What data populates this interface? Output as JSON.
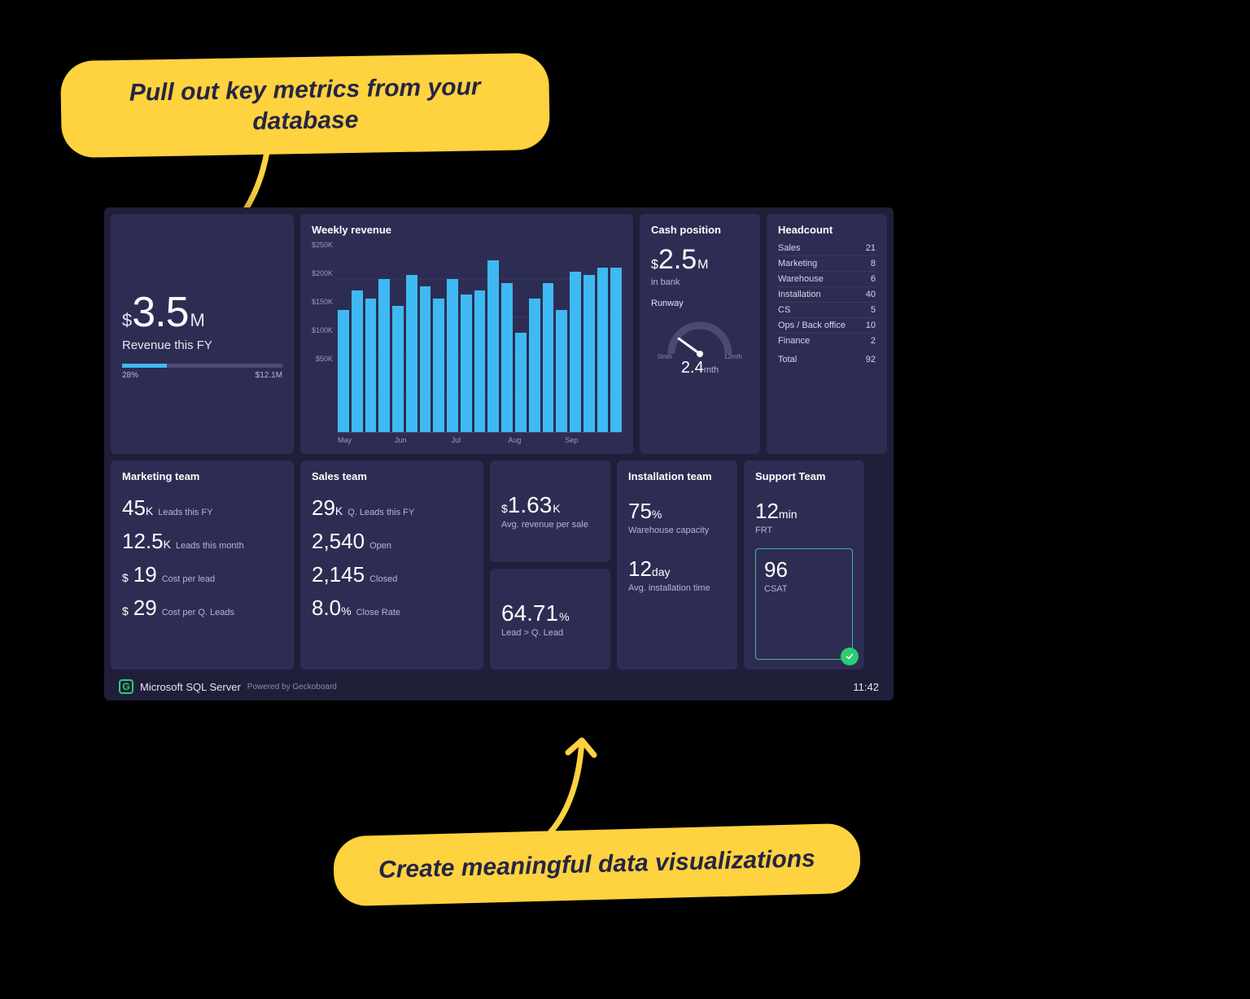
{
  "colors": {
    "page_bg": "#000000",
    "dashboard_bg": "#1f1f3a",
    "card_bg": "#2d2d54",
    "accent_blue": "#3fb9f2",
    "callout_bg": "#ffd23f",
    "callout_text": "#252543",
    "text_primary": "#ffffff",
    "text_muted": "#b5b5d0",
    "grid": "#3a3a5e",
    "success_green": "#2ecc71",
    "csat_border": "#3fb98f"
  },
  "callouts": {
    "top": "Pull out key metrics from your database",
    "bottom": "Create meaningful data visualizations"
  },
  "revenue_fy": {
    "prefix": "$",
    "value": "3.5",
    "suffix": "M",
    "label": "Revenue this FY",
    "progress_pct": 28,
    "progress_label": "28%",
    "target_label": "$12.1M"
  },
  "weekly_revenue": {
    "title": "Weekly revenue",
    "type": "bar",
    "y_ticks": [
      "$250K",
      "$200K",
      "$150K",
      "$100K",
      "$50K"
    ],
    "y_max": 250,
    "x_labels": [
      "May",
      "Jun",
      "Jul",
      "Aug",
      "Sep"
    ],
    "values": [
      160,
      185,
      175,
      200,
      165,
      205,
      190,
      175,
      200,
      180,
      185,
      225,
      195,
      130,
      175,
      195,
      160,
      210,
      205,
      215,
      215
    ],
    "bar_color": "#3fb9f2"
  },
  "cash_position": {
    "title": "Cash position",
    "prefix": "$",
    "value": "2.5",
    "suffix": "M",
    "sub": "in bank",
    "runway_label": "Runway",
    "runway_value": "2.4",
    "runway_unit": "mth",
    "gauge_min": "0mth",
    "gauge_max": "12mth",
    "gauge_max_val": 12,
    "gauge_val": 2.4
  },
  "headcount": {
    "title": "Headcount",
    "rows": [
      {
        "label": "Sales",
        "value": "21"
      },
      {
        "label": "Marketing",
        "value": "8"
      },
      {
        "label": "Warehouse",
        "value": "6"
      },
      {
        "label": "Installation",
        "value": "40"
      },
      {
        "label": "CS",
        "value": "5"
      },
      {
        "label": "Ops / Back office",
        "value": "10"
      },
      {
        "label": "Finance",
        "value": "2"
      }
    ],
    "total_label": "Total",
    "total_value": "92"
  },
  "marketing": {
    "title": "Marketing team",
    "m1_val": "45",
    "m1_unit": "K",
    "m1_lbl": "Leads this FY",
    "m2_val": "12.5",
    "m2_unit": "K",
    "m2_lbl": "Leads this month",
    "m3_prefix": "$",
    "m3_val": "19",
    "m3_lbl": "Cost per lead",
    "m4_prefix": "$",
    "m4_val": "29",
    "m4_lbl": "Cost per Q. Leads"
  },
  "sales": {
    "title": "Sales team",
    "s1_val": "29",
    "s1_unit": "K",
    "s1_lbl": "Q. Leads this FY",
    "s2_val": "2,540",
    "s2_lbl": "Open",
    "s3_val": "2,145",
    "s3_lbl": "Closed",
    "s4_val": "8.0",
    "s4_unit": "%",
    "s4_lbl": "Close Rate"
  },
  "avg_rev": {
    "prefix": "$",
    "value": "1.63",
    "suffix": "K",
    "label": "Avg. revenue per sale"
  },
  "lead_conv": {
    "value": "64.71",
    "suffix": "%",
    "label": "Lead > Q. Lead"
  },
  "installation": {
    "title": "Installation team",
    "i1_val": "75",
    "i1_unit": "%",
    "i1_lbl": "Warehouse capacity",
    "i2_val": "12",
    "i2_unit": "day",
    "i2_lbl": "Avg. installation time"
  },
  "support": {
    "title": "Support Team",
    "sp1_val": "12",
    "sp1_unit": "min",
    "sp1_lbl": "FRT",
    "csat_val": "96",
    "csat_lbl": "CSAT"
  },
  "footer": {
    "source": "Microsoft SQL Server",
    "powered": "Powered by Geckoboard",
    "time": "11:42"
  }
}
